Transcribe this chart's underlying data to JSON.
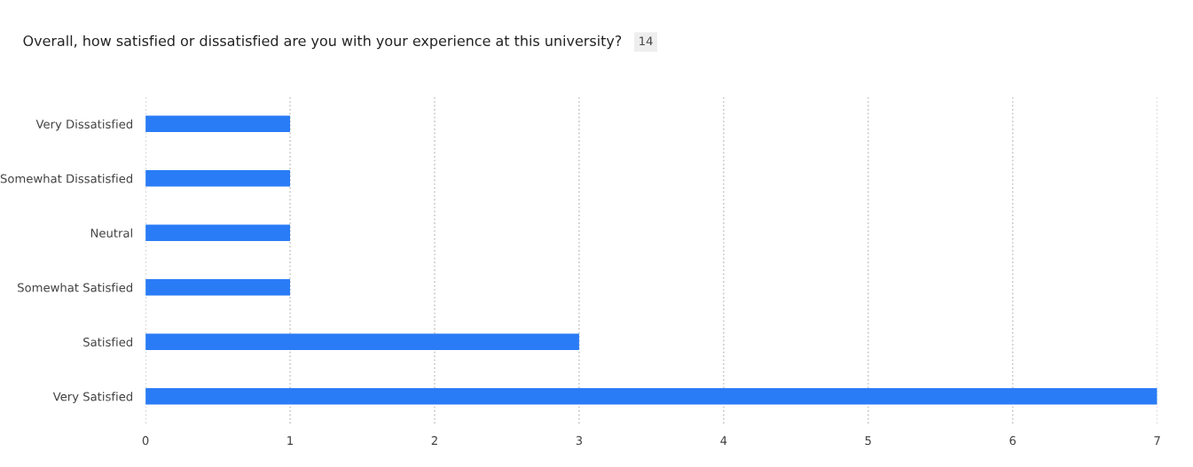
{
  "chart_data": {
    "type": "bar",
    "orientation": "horizontal",
    "title": "Overall, how satisfied or dissatisfied are you with your experience at this university?",
    "annotations": [
      "14"
    ],
    "categories": [
      "Very Dissatisfied",
      "Somewhat Dissatisfied",
      "Neutral",
      "Somewhat Satisfied",
      "Satisfied",
      "Very Satisfied"
    ],
    "values": [
      1,
      1,
      1,
      1,
      3,
      7
    ],
    "color": "#2a7cf6",
    "xlim": [
      0,
      7
    ],
    "xticks": [
      0,
      1,
      2,
      3,
      4,
      5,
      6,
      7
    ],
    "grid": "x",
    "line_style": "dotted",
    "legend": false
  }
}
